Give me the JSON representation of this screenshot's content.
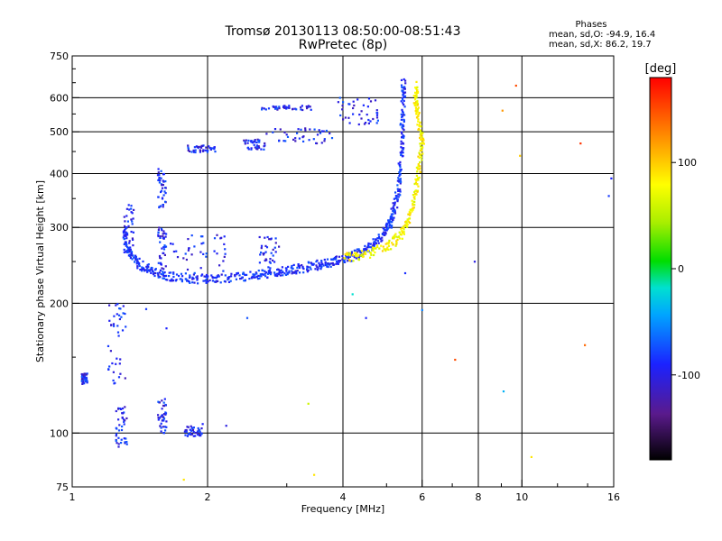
{
  "chart_data": {
    "type": "scatter",
    "title": "Tromsø 20130113 08:50:00-08:51:43",
    "subtitle": "RwPretec (8p)",
    "xlabel": "Frequency [MHz]",
    "ylabel": "Stationary phase Virtual Height [km]",
    "x_scale": "log",
    "y_scale": "log",
    "xlim": [
      1,
      16
    ],
    "ylim": [
      75,
      750
    ],
    "x_ticks": [
      1,
      2,
      4,
      6,
      8,
      10,
      16
    ],
    "y_ticks": [
      75,
      100,
      200,
      300,
      400,
      500,
      600,
      750
    ],
    "grid": true,
    "phase_stats": {
      "title": "Phases",
      "line_o": "mean, sd,O: -94.9, 16.4",
      "line_x": "mean, sd,X:  86.2, 19.7"
    },
    "colorbar": {
      "label": "[deg]",
      "ticks": [
        100,
        0,
        -100
      ],
      "range": [
        -180,
        180
      ]
    },
    "o_trace": [
      [
        1.3,
        300
      ],
      [
        1.32,
        270
      ],
      [
        1.36,
        255
      ],
      [
        1.42,
        245
      ],
      [
        1.5,
        238
      ],
      [
        1.6,
        233
      ],
      [
        1.7,
        230
      ],
      [
        1.85,
        228
      ],
      [
        2.0,
        228
      ],
      [
        2.2,
        229
      ],
      [
        2.4,
        231
      ],
      [
        2.6,
        233
      ],
      [
        2.8,
        236
      ],
      [
        3.0,
        238
      ],
      [
        3.2,
        241
      ],
      [
        3.4,
        244
      ],
      [
        3.6,
        247
      ],
      [
        3.8,
        250
      ],
      [
        4.0,
        254
      ],
      [
        4.2,
        258
      ],
      [
        4.4,
        263
      ],
      [
        4.6,
        270
      ],
      [
        4.8,
        280
      ],
      [
        5.0,
        295
      ],
      [
        5.1,
        310
      ],
      [
        5.2,
        330
      ],
      [
        5.3,
        360
      ],
      [
        5.35,
        400
      ],
      [
        5.4,
        460
      ],
      [
        5.42,
        520
      ],
      [
        5.45,
        600
      ],
      [
        5.45,
        650
      ]
    ],
    "x_trace": [
      [
        4.0,
        255
      ],
      [
        4.3,
        258
      ],
      [
        4.6,
        262
      ],
      [
        4.9,
        268
      ],
      [
        5.2,
        278
      ],
      [
        5.4,
        290
      ],
      [
        5.55,
        305
      ],
      [
        5.7,
        330
      ],
      [
        5.8,
        360
      ],
      [
        5.88,
        400
      ],
      [
        5.95,
        440
      ],
      [
        6.0,
        480
      ],
      [
        5.9,
        520
      ],
      [
        5.85,
        560
      ],
      [
        5.8,
        600
      ],
      [
        5.85,
        640
      ]
    ],
    "low_traces": [
      {
        "x_range": [
          1.05,
          1.08
        ],
        "y_range": [
          130,
          138
        ]
      },
      {
        "x_range": [
          1.2,
          1.32
        ],
        "y_range": [
          130,
          200
        ]
      },
      {
        "x_range": [
          1.25,
          1.33
        ],
        "y_range": [
          92,
          115
        ]
      },
      {
        "x_range": [
          1.55,
          1.62
        ],
        "y_range": [
          100,
          120
        ]
      },
      {
        "x_range": [
          1.78,
          1.95
        ],
        "y_range": [
          98,
          104
        ]
      },
      {
        "x_range": [
          1.3,
          1.37
        ],
        "y_range": [
          255,
          340
        ]
      },
      {
        "x_range": [
          1.55,
          1.62
        ],
        "y_range": [
          330,
          410
        ]
      },
      {
        "x_range": [
          1.55,
          1.62
        ],
        "y_range": [
          240,
          300
        ]
      },
      {
        "x_range": [
          1.65,
          2.2
        ],
        "y_range": [
          235,
          290
        ]
      },
      {
        "x_range": [
          2.6,
          2.9
        ],
        "y_range": [
          230,
          285
        ]
      },
      {
        "x_range": [
          1.8,
          2.1
        ],
        "y_range": [
          448,
          465
        ]
      },
      {
        "x_range": [
          2.4,
          2.7
        ],
        "y_range": [
          455,
          480
        ]
      },
      {
        "x_range": [
          2.7,
          3.8
        ],
        "y_range": [
          470,
          510
        ]
      },
      {
        "x_range": [
          2.6,
          3.4
        ],
        "y_range": [
          562,
          575
        ]
      },
      {
        "x_range": [
          3.9,
          4.8
        ],
        "y_range": [
          520,
          600
        ]
      }
    ],
    "scattered_points": [
      [
        9.7,
        640,
        150
      ],
      [
        9.05,
        560,
        120
      ],
      [
        13.5,
        470,
        160
      ],
      [
        9.9,
        440,
        100
      ],
      [
        15.8,
        390,
        -100
      ],
      [
        15.6,
        355,
        -90
      ],
      [
        7.85,
        250,
        -110
      ],
      [
        5.5,
        235,
        -95
      ],
      [
        6.0,
        193,
        -60
      ],
      [
        4.5,
        185,
        -100
      ],
      [
        4.2,
        210,
        -20
      ],
      [
        7.1,
        148,
        150
      ],
      [
        13.8,
        160,
        140
      ],
      [
        9.1,
        125,
        -40
      ],
      [
        10.5,
        88,
        90
      ],
      [
        3.45,
        80,
        90
      ],
      [
        3.35,
        117,
        60
      ],
      [
        1.77,
        78,
        90
      ],
      [
        1.95,
        105,
        -100
      ],
      [
        2.2,
        104,
        -110
      ],
      [
        1.62,
        175,
        -100
      ],
      [
        1.46,
        194,
        -90
      ],
      [
        2.45,
        185,
        -80
      ]
    ]
  }
}
